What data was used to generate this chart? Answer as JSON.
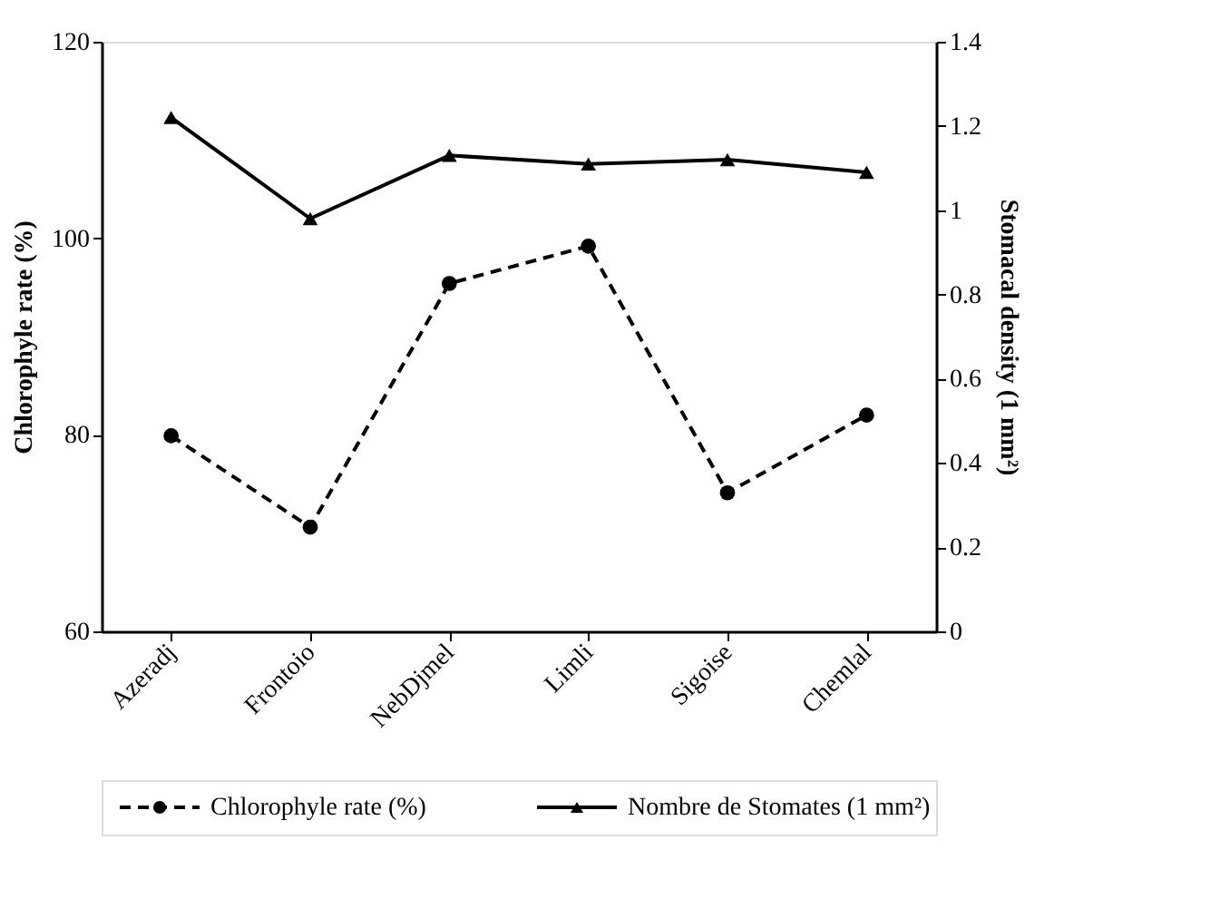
{
  "chart_data": {
    "type": "line",
    "ylabel": "Chlorophyle rate (%)",
    "y2label": "Stomacal density (1 mm²)",
    "categories": [
      "Azeradj",
      "Frontoio",
      "NebDjmel",
      "Limli",
      "Sigoise",
      "Chemlal"
    ],
    "series": [
      {
        "name": "Chlorophyle rate (%)",
        "color": "#000000",
        "marker": "circle",
        "line_style": "dashed",
        "values": [
          79.9,
          70.6,
          95.4,
          99.2,
          74.1,
          82.0
        ]
      },
      {
        "name": "Nombre de Stomates (1 mm²)",
        "color": "#000000",
        "marker": "triangle",
        "line_style": "solid",
        "axis": "y2",
        "values": [
          1.22,
          0.98,
          1.13,
          1.11,
          1.12,
          1.09
        ]
      }
    ],
    "ylim": [
      60,
      120
    ],
    "yticks": [
      60,
      80,
      100,
      120
    ],
    "y2lim": [
      0,
      1.4
    ],
    "y2ticks": [
      {
        "value": 0,
        "label": "0"
      },
      0.2,
      0.4,
      0.6,
      0.8,
      {
        "value": 1,
        "label": "1"
      },
      1.2,
      1.4
    ],
    "grid": false,
    "legend": "bottom"
  }
}
